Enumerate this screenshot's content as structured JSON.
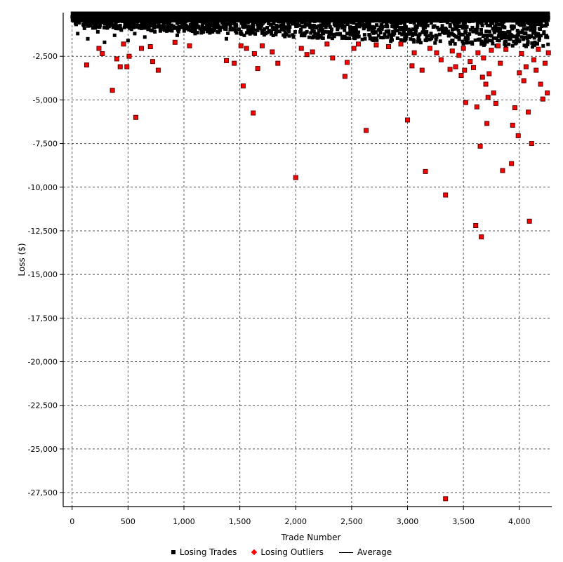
{
  "chart_data": {
    "type": "scatter",
    "title": "",
    "xlabel": "Trade Number",
    "ylabel": "Loss ($)",
    "xlim": [
      -80,
      4290
    ],
    "ylim": [
      -28300,
      0
    ],
    "x_ticks": [
      0,
      500,
      1000,
      1500,
      2000,
      2500,
      3000,
      3500,
      4000
    ],
    "x_tick_labels": [
      "0",
      "500",
      "1,000",
      "1,500",
      "2,000",
      "2,500",
      "3,000",
      "3,500",
      "4,000"
    ],
    "y_ticks": [
      -2500,
      -5000,
      -7500,
      -10000,
      -12500,
      -15000,
      -17500,
      -20000,
      -22500,
      -25000,
      -27500
    ],
    "y_tick_labels": [
      "-2,500",
      "-5,000",
      "-7,500",
      "-10,000",
      "-12,500",
      "-15,000",
      "-17,500",
      "-20,000",
      "-22,500",
      "-25,000",
      "-27,500"
    ],
    "grid": true,
    "legend_position": "bottom",
    "series": [
      {
        "name": "Losing Trades",
        "marker": "square",
        "color": "#000000",
        "summary": "dense band of approximately 4,200 losing trades between 0 and about -2,000",
        "points": [
          [
            10,
            -100
          ],
          [
            30,
            -600
          ],
          [
            50,
            -1200
          ],
          [
            80,
            -300
          ],
          [
            110,
            -900
          ],
          [
            140,
            -1500
          ],
          [
            170,
            -200
          ],
          [
            200,
            -700
          ],
          [
            230,
            -1100
          ],
          [
            260,
            -400
          ],
          [
            290,
            -1700
          ],
          [
            320,
            -800
          ],
          [
            350,
            -150
          ],
          [
            380,
            -1300
          ],
          [
            410,
            -500
          ],
          [
            440,
            -1000
          ],
          [
            470,
            -250
          ],
          [
            500,
            -1600
          ],
          [
            530,
            -650
          ],
          [
            560,
            -1200
          ],
          [
            590,
            -350
          ],
          [
            620,
            -900
          ],
          [
            650,
            -1400
          ],
          [
            680,
            -200
          ],
          [
            710,
            -750
          ],
          [
            740,
            -1100
          ],
          [
            780,
            -300
          ],
          [
            820,
            -600
          ],
          [
            860,
            -1000
          ],
          [
            900,
            -200
          ],
          [
            940,
            -1300
          ],
          [
            980,
            -500
          ],
          [
            1020,
            -800
          ],
          [
            1060,
            -150
          ],
          [
            1100,
            -1200
          ],
          [
            1140,
            -450
          ],
          [
            1180,
            -900
          ],
          [
            1220,
            -250
          ],
          [
            1260,
            -700
          ],
          [
            1300,
            -1100
          ],
          [
            1340,
            -350
          ],
          [
            1380,
            -1500
          ],
          [
            1420,
            -600
          ],
          [
            1460,
            -950
          ],
          [
            1500,
            -200
          ],
          [
            1540,
            -1300
          ],
          [
            1580,
            -500
          ],
          [
            1620,
            -850
          ],
          [
            1660,
            -150
          ],
          [
            1700,
            -1100
          ],
          [
            1740,
            -400
          ],
          [
            1780,
            -700
          ],
          [
            1820,
            -1200
          ],
          [
            1860,
            -300
          ],
          [
            1900,
            -900
          ],
          [
            1940,
            -550
          ],
          [
            1980,
            -1400
          ],
          [
            2020,
            -250
          ],
          [
            2060,
            -800
          ],
          [
            2100,
            -1100
          ],
          [
            2140,
            -450
          ],
          [
            2180,
            -200
          ],
          [
            2220,
            -950
          ],
          [
            2260,
            -600
          ],
          [
            2300,
            -1300
          ],
          [
            2340,
            -350
          ],
          [
            2380,
            -850
          ],
          [
            2420,
            -150
          ],
          [
            2460,
            -1200
          ],
          [
            2500,
            -500
          ],
          [
            2540,
            -900
          ],
          [
            2580,
            -250
          ],
          [
            2620,
            -1500
          ],
          [
            2660,
            -700
          ],
          [
            2700,
            -350
          ],
          [
            2740,
            -1000
          ],
          [
            2780,
            -200
          ],
          [
            2820,
            -800
          ],
          [
            2860,
            -1300
          ],
          [
            2900,
            -450
          ],
          [
            2940,
            -950
          ],
          [
            2980,
            -150
          ],
          [
            3020,
            -1200
          ],
          [
            3060,
            -600
          ],
          [
            3100,
            -350
          ],
          [
            3140,
            -1100
          ],
          [
            3180,
            -750
          ],
          [
            3220,
            -250
          ],
          [
            3260,
            -1400
          ],
          [
            3300,
            -500
          ],
          [
            3340,
            -900
          ],
          [
            3380,
            -1700
          ],
          [
            3420,
            -300
          ],
          [
            3460,
            -1200
          ],
          [
            3500,
            -650
          ],
          [
            3540,
            -1500
          ],
          [
            3580,
            -200
          ],
          [
            3620,
            -1000
          ],
          [
            3660,
            -1800
          ],
          [
            3700,
            -450
          ],
          [
            3740,
            -1300
          ],
          [
            3780,
            -800
          ],
          [
            3820,
            -1600
          ],
          [
            3860,
            -350
          ],
          [
            3900,
            -1100
          ],
          [
            3940,
            -1900
          ],
          [
            3980,
            -600
          ],
          [
            4020,
            -1400
          ],
          [
            4060,
            -250
          ],
          [
            4100,
            -1000
          ],
          [
            4140,
            -1700
          ],
          [
            4180,
            -500
          ],
          [
            4220,
            -1200
          ],
          [
            4260,
            -300
          ]
        ]
      },
      {
        "name": "Losing Outliers",
        "marker": "diamond",
        "color": "#ff0000",
        "points": [
          [
            130,
            -3000
          ],
          [
            240,
            -2050
          ],
          [
            270,
            -2350
          ],
          [
            360,
            -4450
          ],
          [
            400,
            -2650
          ],
          [
            430,
            -3100
          ],
          [
            460,
            -1800
          ],
          [
            490,
            -3100
          ],
          [
            510,
            -2500
          ],
          [
            570,
            -6000
          ],
          [
            620,
            -2050
          ],
          [
            700,
            -1950
          ],
          [
            720,
            -2800
          ],
          [
            770,
            -3300
          ],
          [
            920,
            -1700
          ],
          [
            1050,
            -1900
          ],
          [
            1380,
            -2750
          ],
          [
            1450,
            -2900
          ],
          [
            1510,
            -1900
          ],
          [
            1530,
            -4200
          ],
          [
            1560,
            -2050
          ],
          [
            1620,
            -5750
          ],
          [
            1630,
            -2350
          ],
          [
            1660,
            -3200
          ],
          [
            1700,
            -1900
          ],
          [
            1790,
            -2250
          ],
          [
            1840,
            -2900
          ],
          [
            2000,
            -9450
          ],
          [
            2050,
            -2050
          ],
          [
            2100,
            -2400
          ],
          [
            2150,
            -2250
          ],
          [
            2280,
            -1800
          ],
          [
            2330,
            -2600
          ],
          [
            2440,
            -3650
          ],
          [
            2460,
            -2850
          ],
          [
            2520,
            -2050
          ],
          [
            2560,
            -1800
          ],
          [
            2630,
            -6750
          ],
          [
            2720,
            -1850
          ],
          [
            2830,
            -1950
          ],
          [
            2940,
            -1800
          ],
          [
            3000,
            -6150
          ],
          [
            3040,
            -3050
          ],
          [
            3060,
            -2300
          ],
          [
            3130,
            -3300
          ],
          [
            3160,
            -9100
          ],
          [
            3200,
            -2050
          ],
          [
            3260,
            -2300
          ],
          [
            3300,
            -2700
          ],
          [
            3340,
            -10450
          ],
          [
            3340,
            -27850
          ],
          [
            3380,
            -3250
          ],
          [
            3400,
            -2200
          ],
          [
            3430,
            -3100
          ],
          [
            3460,
            -2450
          ],
          [
            3480,
            -3600
          ],
          [
            3500,
            -2050
          ],
          [
            3510,
            -3300
          ],
          [
            3520,
            -5150
          ],
          [
            3560,
            -2800
          ],
          [
            3590,
            -3150
          ],
          [
            3610,
            -12200
          ],
          [
            3620,
            -5400
          ],
          [
            3630,
            -2300
          ],
          [
            3650,
            -7650
          ],
          [
            3660,
            -12850
          ],
          [
            3670,
            -3700
          ],
          [
            3680,
            -2600
          ],
          [
            3700,
            -4100
          ],
          [
            3710,
            -6350
          ],
          [
            3720,
            -4850
          ],
          [
            3730,
            -3500
          ],
          [
            3750,
            -2150
          ],
          [
            3770,
            -4600
          ],
          [
            3790,
            -5200
          ],
          [
            3810,
            -1900
          ],
          [
            3830,
            -2900
          ],
          [
            3850,
            -9050
          ],
          [
            3880,
            -2100
          ],
          [
            3930,
            -8650
          ],
          [
            3940,
            -6450
          ],
          [
            3960,
            -5450
          ],
          [
            3990,
            -7050
          ],
          [
            4000,
            -3450
          ],
          [
            4020,
            -2350
          ],
          [
            4040,
            -3900
          ],
          [
            4060,
            -3100
          ],
          [
            4080,
            -5700
          ],
          [
            4090,
            -11950
          ],
          [
            4110,
            -7500
          ],
          [
            4130,
            -2700
          ],
          [
            4150,
            -3300
          ],
          [
            4170,
            -2100
          ],
          [
            4190,
            -4100
          ],
          [
            4210,
            -4950
          ],
          [
            4230,
            -2900
          ],
          [
            4250,
            -4600
          ],
          [
            4260,
            -2300
          ]
        ]
      },
      {
        "name": "Average",
        "marker": "line",
        "color": "#000000",
        "value": -550
      }
    ]
  },
  "legend": {
    "items": [
      {
        "label": "Losing Trades"
      },
      {
        "label": "Losing Outliers"
      },
      {
        "label": "Average"
      }
    ]
  }
}
